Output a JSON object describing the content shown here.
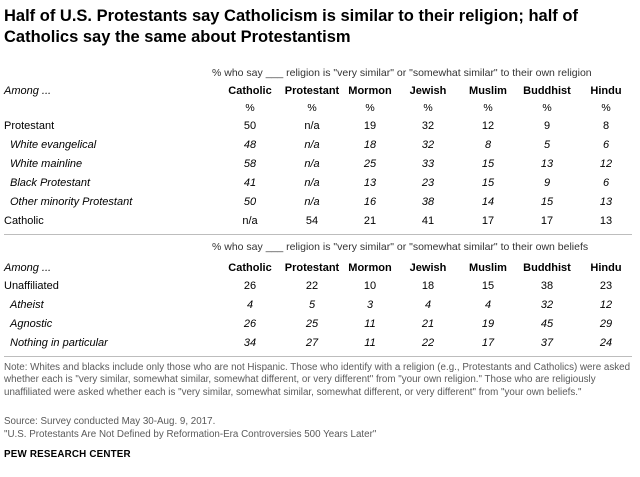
{
  "title": "Half of U.S. Protestants say Catholicism is similar to their religion; half of Catholics say the same about Protestantism",
  "chart_data": {
    "type": "table",
    "columns": [
      "Catholic",
      "Protestant",
      "Mormon",
      "Jewish",
      "Muslim",
      "Buddhist",
      "Hindu"
    ],
    "tables": [
      {
        "subtitle": "% who say ___ religion is \"very similar\" or \"somewhat similar\" to their own religion",
        "among_label": "Among ...",
        "unit_row": [
          "%",
          "%",
          "%",
          "%",
          "%",
          "%",
          "%"
        ],
        "rows": [
          {
            "label": "Protestant",
            "italic": false,
            "values": [
              "50",
              "n/a",
              "19",
              "32",
              "12",
              "9",
              "8"
            ]
          },
          {
            "label": "White evangelical",
            "italic": true,
            "values": [
              "48",
              "n/a",
              "18",
              "32",
              "8",
              "5",
              "6"
            ]
          },
          {
            "label": "White mainline",
            "italic": true,
            "values": [
              "58",
              "n/a",
              "25",
              "33",
              "15",
              "13",
              "12"
            ]
          },
          {
            "label": "Black Protestant",
            "italic": true,
            "values": [
              "41",
              "n/a",
              "13",
              "23",
              "15",
              "9",
              "6"
            ]
          },
          {
            "label": "Other minority Protestant",
            "italic": true,
            "values": [
              "50",
              "n/a",
              "16",
              "38",
              "14",
              "15",
              "13"
            ]
          },
          {
            "label": "Catholic",
            "italic": false,
            "values": [
              "n/a",
              "54",
              "21",
              "41",
              "17",
              "17",
              "13"
            ]
          }
        ]
      },
      {
        "subtitle": "% who say ___ religion is \"very similar\" or \"somewhat similar\" to their own beliefs",
        "among_label": "Among ...",
        "unit_row": [],
        "rows": [
          {
            "label": "Unaffiliated",
            "italic": false,
            "values": [
              "26",
              "22",
              "10",
              "18",
              "15",
              "38",
              "23"
            ]
          },
          {
            "label": "Atheist",
            "italic": true,
            "values": [
              "4",
              "5",
              "3",
              "4",
              "4",
              "32",
              "12"
            ]
          },
          {
            "label": "Agnostic",
            "italic": true,
            "values": [
              "26",
              "25",
              "11",
              "21",
              "19",
              "45",
              "29"
            ]
          },
          {
            "label": "Nothing in particular",
            "italic": true,
            "values": [
              "34",
              "27",
              "11",
              "22",
              "17",
              "37",
              "24"
            ]
          }
        ]
      }
    ]
  },
  "note": "Note: Whites and blacks include only those who are not Hispanic. Those who identify with a religion (e.g., Protestants and Catholics) were asked whether each is \"very similar, somewhat similar, somewhat different, or very different\" from \"your own religion.\" Those who are religiously unaffiliated were asked whether each is \"very similar, somewhat similar, somewhat different, or very different\" from \"your own beliefs.\"",
  "source": "Source: Survey conducted May 30-Aug. 9, 2017.",
  "report": "\"U.S. Protestants Are Not Defined by Reformation-Era Controversies 500 Years Later\"",
  "brand": "PEW RESEARCH CENTER"
}
